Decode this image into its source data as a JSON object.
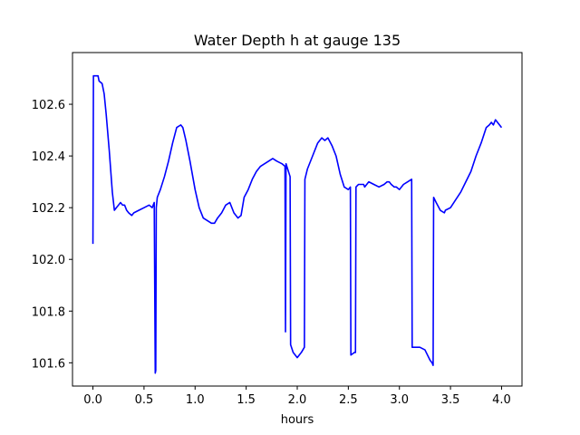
{
  "chart_data": {
    "type": "line",
    "title": "Water Depth h at gauge 135",
    "xlabel": "hours",
    "ylabel": "",
    "xlim": [
      -0.2,
      4.2
    ],
    "ylim": [
      101.51,
      102.8
    ],
    "xticks": [
      0.0,
      0.5,
      1.0,
      1.5,
      2.0,
      2.5,
      3.0,
      3.5,
      4.0
    ],
    "xtick_labels": [
      "0.0",
      "0.5",
      "1.0",
      "1.5",
      "2.0",
      "2.5",
      "3.0",
      "3.5",
      "4.0"
    ],
    "yticks": [
      101.6,
      101.8,
      102.0,
      102.2,
      102.4,
      102.6
    ],
    "ytick_labels": [
      "101.6",
      "101.8",
      "102.0",
      "102.2",
      "102.4",
      "102.6"
    ],
    "grid": false,
    "line_color": "#0000ff",
    "series": [
      {
        "x": [
          0.0,
          0.005,
          0.02,
          0.05,
          0.06,
          0.09,
          0.11,
          0.13,
          0.16,
          0.19,
          0.21,
          0.23,
          0.25,
          0.27,
          0.29,
          0.31,
          0.33,
          0.35,
          0.38,
          0.4,
          0.45,
          0.5,
          0.55,
          0.58,
          0.6,
          0.61,
          0.615,
          0.62,
          0.625,
          0.63,
          0.66,
          0.7,
          0.74,
          0.78,
          0.82,
          0.86,
          0.88,
          0.91,
          0.95,
          1.0,
          1.04,
          1.08,
          1.12,
          1.16,
          1.19,
          1.22,
          1.26,
          1.3,
          1.34,
          1.38,
          1.42,
          1.45,
          1.48,
          1.52,
          1.56,
          1.6,
          1.64,
          1.68,
          1.72,
          1.76,
          1.8,
          1.85,
          1.88,
          1.885,
          1.89,
          1.93,
          1.935,
          1.96,
          2.0,
          2.04,
          2.07,
          2.075,
          2.1,
          2.15,
          2.2,
          2.24,
          2.27,
          2.3,
          2.34,
          2.38,
          2.42,
          2.46,
          2.5,
          2.52,
          2.525,
          2.56,
          2.57,
          2.575,
          2.6,
          2.62,
          2.63,
          2.65,
          2.66,
          2.68,
          2.7,
          2.75,
          2.8,
          2.85,
          2.88,
          2.9,
          2.92,
          2.95,
          2.97,
          3.0,
          3.04,
          3.08,
          3.12,
          3.125,
          3.16,
          3.2,
          3.25,
          3.3,
          3.32,
          3.33,
          3.335,
          3.36,
          3.4,
          3.44,
          3.45,
          3.5,
          3.55,
          3.6,
          3.65,
          3.7,
          3.75,
          3.8,
          3.85,
          3.88,
          3.9,
          3.92,
          3.93,
          3.94,
          3.96,
          3.98,
          4.0
        ],
        "y": [
          102.06,
          102.71,
          102.71,
          102.71,
          102.69,
          102.68,
          102.64,
          102.56,
          102.42,
          102.26,
          102.19,
          102.2,
          102.21,
          102.22,
          102.21,
          102.21,
          102.19,
          102.18,
          102.17,
          102.18,
          102.19,
          102.2,
          102.21,
          102.2,
          102.22,
          101.56,
          101.57,
          102.2,
          102.22,
          102.24,
          102.27,
          102.32,
          102.38,
          102.45,
          102.51,
          102.52,
          102.51,
          102.46,
          102.38,
          102.27,
          102.2,
          102.16,
          102.15,
          102.14,
          102.14,
          102.16,
          102.18,
          102.21,
          102.22,
          102.18,
          102.16,
          102.17,
          102.24,
          102.27,
          102.31,
          102.34,
          102.36,
          102.37,
          102.38,
          102.39,
          102.38,
          102.37,
          102.36,
          101.72,
          102.37,
          102.32,
          101.67,
          101.64,
          101.62,
          101.64,
          101.66,
          102.31,
          102.35,
          102.4,
          102.45,
          102.47,
          102.46,
          102.47,
          102.44,
          102.4,
          102.33,
          102.28,
          102.27,
          102.28,
          101.63,
          101.64,
          101.64,
          102.28,
          102.29,
          102.29,
          102.29,
          102.29,
          102.28,
          102.29,
          102.3,
          102.29,
          102.28,
          102.29,
          102.3,
          102.3,
          102.29,
          102.28,
          102.28,
          102.27,
          102.29,
          102.3,
          102.31,
          101.66,
          101.66,
          101.66,
          101.65,
          101.61,
          101.6,
          101.59,
          102.24,
          102.22,
          102.19,
          102.18,
          102.19,
          102.2,
          102.23,
          102.26,
          102.3,
          102.34,
          102.4,
          102.45,
          102.51,
          102.52,
          102.53,
          102.52,
          102.53,
          102.54,
          102.53,
          102.52,
          102.51
        ]
      }
    ]
  }
}
